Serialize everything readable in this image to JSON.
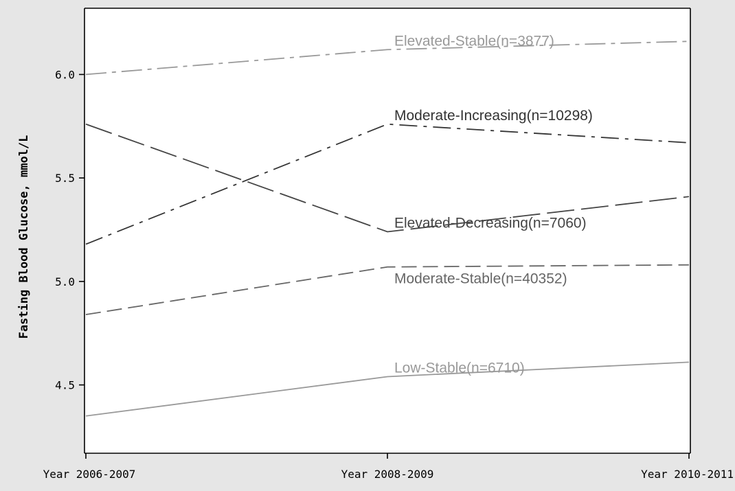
{
  "chart_data": {
    "type": "line",
    "title": "",
    "xlabel": "",
    "ylabel": "Fasting Blood Glucose, mmol/L",
    "categories": [
      "Year 2006-2007",
      "Year 2008-2009",
      "Year 2010-2011"
    ],
    "yticks": [
      "4.5",
      "5.0",
      "5.5",
      "6.0"
    ],
    "ylim": [
      4.17,
      6.32
    ],
    "grid": false,
    "series": [
      {
        "name": "Elevated-Stable(n=3877)",
        "values": [
          6.0,
          6.12,
          6.16
        ],
        "color": "#999999",
        "dash": "dash-dot-long"
      },
      {
        "name": "Moderate-Increasing(n=10298)",
        "values": [
          5.18,
          5.76,
          5.67
        ],
        "color": "#333333",
        "dash": "dash-dot"
      },
      {
        "name": "Elevated-Decreasing(n=7060)",
        "values": [
          5.76,
          5.24,
          5.41
        ],
        "color": "#444444",
        "dash": "long-dash"
      },
      {
        "name": "Moderate-Stable(n=40352)",
        "values": [
          4.84,
          5.07,
          5.08
        ],
        "color": "#666666",
        "dash": "dash"
      },
      {
        "name": "Low-Stable(n=6710)",
        "values": [
          4.35,
          4.54,
          4.61
        ],
        "color": "#999999",
        "dash": "solid"
      }
    ]
  }
}
